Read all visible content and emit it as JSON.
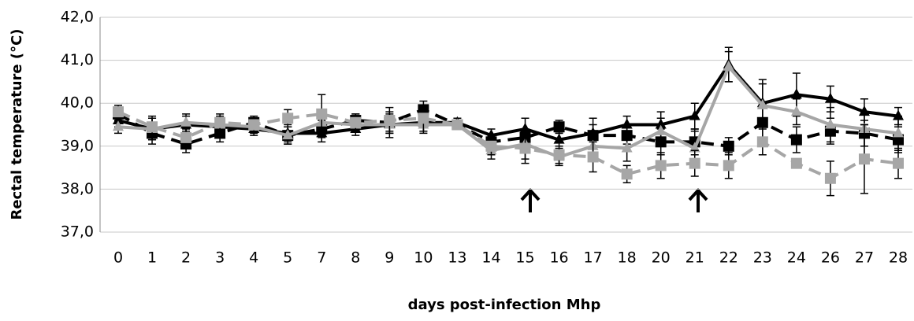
{
  "chart_data": {
    "type": "line",
    "x_label": "days post-infection Mhp",
    "y_label": "Rectal temperature (°C)",
    "categories": [
      "0",
      "1",
      "2",
      "3",
      "4",
      "5",
      "7",
      "8",
      "9",
      "10",
      "13",
      "14",
      "15",
      "16",
      "17",
      "18",
      "20",
      "21",
      "22",
      "23",
      "24",
      "26",
      "27",
      "28"
    ],
    "ylim": [
      37,
      42
    ],
    "yticks": [
      {
        "value": 37,
        "label": "37,0"
      },
      {
        "value": 38,
        "label": "38,0"
      },
      {
        "value": 39,
        "label": "39,0"
      },
      {
        "value": 40,
        "label": "40,0"
      },
      {
        "value": 41,
        "label": "41,0"
      },
      {
        "value": 42,
        "label": "42,0"
      }
    ],
    "grid": true,
    "series": [
      {
        "color": "#000000",
        "dashed": false,
        "marker": "triangle",
        "values": [
          39.6,
          39.4,
          39.5,
          39.45,
          39.4,
          39.3,
          39.3,
          39.4,
          39.5,
          39.55,
          39.55,
          39.25,
          39.4,
          39.15,
          39.3,
          39.5,
          39.5,
          39.7,
          40.9,
          40.0,
          40.2,
          40.1,
          39.8,
          39.7
        ],
        "errors": [
          0.15,
          0.25,
          0.2,
          0.2,
          0.15,
          0.2,
          0.2,
          0.15,
          0.2,
          0.2,
          0.1,
          0.15,
          0.25,
          0.15,
          0.35,
          0.2,
          0.3,
          0.3,
          0.4,
          0.55,
          0.5,
          0.3,
          0.3,
          0.2
        ]
      },
      {
        "color": "#000000",
        "dashed": true,
        "marker": "square",
        "values": [
          39.75,
          39.3,
          39.05,
          39.3,
          39.55,
          39.25,
          39.4,
          39.6,
          39.55,
          39.85,
          39.5,
          39.1,
          39.2,
          39.45,
          39.25,
          39.25,
          39.1,
          39.1,
          39.0,
          39.55,
          39.15,
          39.35,
          39.3,
          39.15
        ],
        "errors": [
          0.15,
          0.25,
          0.2,
          0.2,
          0.15,
          0.2,
          0.2,
          0.15,
          0.2,
          0.2,
          0.1,
          0.15,
          0.2,
          0.15,
          0.25,
          0.2,
          0.3,
          0.3,
          0.2,
          0.45,
          0.3,
          0.3,
          0.3,
          0.3
        ]
      },
      {
        "color": "#a6a6a6",
        "dashed": false,
        "marker": "triangle",
        "values": [
          39.45,
          39.4,
          39.55,
          39.5,
          39.45,
          39.25,
          39.55,
          39.5,
          39.5,
          39.5,
          39.5,
          38.9,
          39.05,
          38.75,
          39.0,
          38.95,
          39.35,
          38.95,
          40.85,
          39.95,
          39.8,
          39.5,
          39.4,
          39.3
        ],
        "errors": [
          0.15,
          0.25,
          0.2,
          0.2,
          0.15,
          0.2,
          0.3,
          0.15,
          0.3,
          0.2,
          0.1,
          0.2,
          0.35,
          0.2,
          0.35,
          0.3,
          0.3,
          0.4,
          0.35,
          0.5,
          0.3,
          0.4,
          0.4,
          0.4
        ]
      },
      {
        "color": "#a6a6a6",
        "dashed": true,
        "marker": "square",
        "values": [
          39.8,
          39.45,
          39.2,
          39.55,
          39.5,
          39.65,
          39.75,
          39.55,
          39.6,
          39.65,
          39.5,
          39.0,
          38.95,
          38.8,
          38.75,
          38.35,
          38.55,
          38.6,
          38.55,
          39.1,
          38.6,
          38.25,
          38.7,
          38.6
        ],
        "errors": [
          0.15,
          0.25,
          0.2,
          0.2,
          0.15,
          0.2,
          0.45,
          0.2,
          0.3,
          0.3,
          0.1,
          0.2,
          0.35,
          0.2,
          0.35,
          0.2,
          0.3,
          0.3,
          0.3,
          0.3,
          0.1,
          0.4,
          0.8,
          0.35
        ]
      }
    ]
  }
}
